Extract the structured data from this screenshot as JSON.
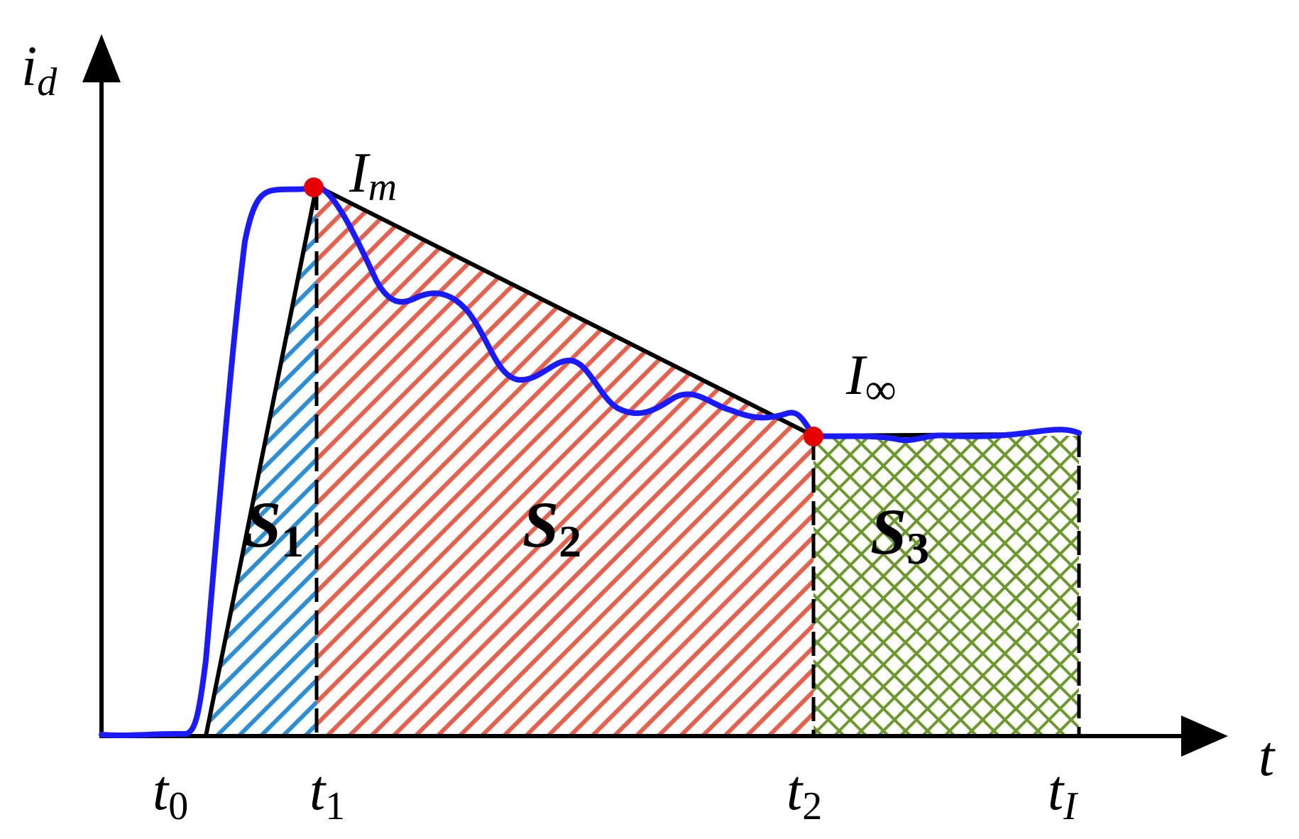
{
  "axes": {
    "y_symbol": "i",
    "y_subscript": "d",
    "x_symbol": "t"
  },
  "points": {
    "peak_symbol": "I",
    "peak_subscript": "m",
    "steady_symbol": "I",
    "steady_subscript": "∞"
  },
  "time_ticks": [
    {
      "symbol": "t",
      "subscript": "0"
    },
    {
      "symbol": "t",
      "subscript": "1"
    },
    {
      "symbol": "t",
      "subscript": "2"
    },
    {
      "symbol": "t",
      "subscript": "I"
    }
  ],
  "areas": [
    {
      "symbol": "S",
      "subscript": "1"
    },
    {
      "symbol": "S",
      "subscript": "2"
    },
    {
      "symbol": "S",
      "subscript": "3"
    }
  ],
  "colors": {
    "curve": "#1a1aff",
    "marker": "#e60000",
    "hatch_s1": "#2b8fd6",
    "hatch_s2": "#e8604c",
    "hatch_s3": "#6b9a2a",
    "axis": "#000000"
  }
}
